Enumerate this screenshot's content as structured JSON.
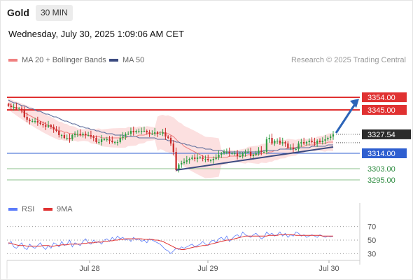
{
  "header": {
    "title": "Gold",
    "timeframe": "30 MIN"
  },
  "datetime": "Wednesday, July 30, 2025 1:09:06 AM CET",
  "legend": {
    "ma20_label": "MA 20 + Bollinger Bands",
    "ma50_label": "MA 50",
    "credit": "Research © 2025 Trading Central",
    "rsi_label": "RSI",
    "ma9_label": "9MA"
  },
  "colors": {
    "up": "#2f9e44",
    "down": "#c92a2a",
    "resistance": "#e03131",
    "support_major": "#2f5fd0",
    "support_minor": "#8bc28b",
    "bollinger": "#fbd5d5",
    "ma20": "#f08080",
    "ma50": "#5a6a9a",
    "rsi": "#5c7cfa",
    "rsi_ma": "#e03131",
    "arrow": "#2c64b8",
    "trendline": "#3b4a80"
  },
  "chart_data": [
    {
      "type": "candlestick",
      "title": "Gold",
      "x_labels": [
        "Jul 28",
        "Jul 29",
        "Jul 30"
      ],
      "ylim": [
        3290,
        3360
      ],
      "current_price": 3327.54,
      "price_tag": "3327.54",
      "levels": [
        {
          "value": 3354.0,
          "label": "3354.00",
          "kind": "resistance"
        },
        {
          "value": 3345.0,
          "label": "3345.00",
          "kind": "resistance"
        },
        {
          "value": 3314.0,
          "label": "3314.00",
          "kind": "support_major"
        },
        {
          "value": 3303.0,
          "label": "3303.00",
          "kind": "support_minor"
        },
        {
          "value": 3295.0,
          "label": "3295.00",
          "kind": "support_minor"
        }
      ],
      "close": [
        3348,
        3347,
        3347,
        3346,
        3346,
        3345,
        3340,
        3338,
        3337,
        3337,
        3337,
        3336,
        3335,
        3334,
        3333,
        3334,
        3333,
        3331,
        3330,
        3327,
        3327,
        3325,
        3325,
        3324,
        3327,
        3328,
        3328,
        3327,
        3328,
        3327,
        3327,
        3326,
        3325,
        3322,
        3322,
        3324,
        3324,
        3324,
        3323,
        3322,
        3322,
        3322,
        3325,
        3326,
        3328,
        3328,
        3330,
        3329,
        3330,
        3330,
        3330,
        3330,
        3329,
        3328,
        3328,
        3329,
        3328,
        3328,
        3329,
        3326,
        3325,
        3321,
        3315,
        3302,
        3306,
        3307,
        3308,
        3309,
        3310,
        3311,
        3310,
        3311,
        3311,
        3310,
        3310,
        3309,
        3309,
        3310,
        3311,
        3313,
        3314,
        3315,
        3315,
        3314,
        3314,
        3314,
        3312,
        3312,
        3314,
        3315,
        3315,
        3312,
        3313,
        3314,
        3316,
        3315,
        3315,
        3324,
        3325,
        3321,
        3323,
        3323,
        3321,
        3322,
        3321,
        3318,
        3318,
        3317,
        3317,
        3321,
        3322,
        3321,
        3322,
        3323,
        3322,
        3321,
        3323,
        3322,
        3323,
        3324,
        3325,
        3326,
        3327.54
      ],
      "ma20": [
        3350,
        3348,
        3347,
        3346,
        3345,
        3344,
        3343,
        3342,
        3341,
        3340,
        3339,
        3338,
        3337,
        3336,
        3335,
        3334,
        3333,
        3332,
        3331,
        3330,
        3330,
        3329,
        3329,
        3328,
        3328,
        3328,
        3327,
        3327,
        3327,
        3327,
        3327,
        3326,
        3326,
        3326,
        3326,
        3325,
        3325,
        3325,
        3325,
        3325,
        3325,
        3325,
        3325,
        3325,
        3325,
        3326,
        3326,
        3326,
        3326,
        3327,
        3327,
        3327,
        3328,
        3328,
        3328,
        3328,
        3328,
        3329,
        3329,
        3328,
        3328,
        3327,
        3326,
        3324,
        3322,
        3321,
        3319,
        3318,
        3317,
        3316,
        3315,
        3314,
        3313,
        3312,
        3311,
        3311,
        3311,
        3311,
        3311,
        3311,
        3311,
        3311,
        3311,
        3312,
        3312,
        3312,
        3312,
        3312,
        3312,
        3312,
        3313,
        3313,
        3313,
        3313,
        3313,
        3314,
        3314,
        3314,
        3315,
        3315,
        3316,
        3316,
        3317,
        3317,
        3317,
        3318,
        3318,
        3318,
        3318,
        3319,
        3319,
        3319,
        3320,
        3320,
        3320,
        3320,
        3321,
        3321,
        3321,
        3321,
        3322,
        3322,
        3322
      ],
      "ma50": [
        3352,
        3351,
        3350,
        3350,
        3349,
        3348,
        3348,
        3347,
        3346,
        3346,
        3345,
        3344,
        3344,
        3343,
        3342,
        3342,
        3341,
        3340,
        3340,
        3339,
        3338,
        3337,
        3337,
        3336,
        3335,
        3335,
        3334,
        3333,
        3333,
        3332,
        3332,
        3331,
        3331,
        3330,
        3330,
        3329,
        3329,
        3328,
        3328,
        3328,
        3327,
        3327,
        3327,
        3327,
        3326,
        3326,
        3326,
        3326,
        3326,
        3325,
        3325,
        3325,
        3325,
        3325,
        3325,
        3325,
        3324,
        3324,
        3324,
        3324,
        3323,
        3323,
        3323,
        3322,
        3322,
        3321,
        3321,
        3320,
        3320,
        3319,
        3319,
        3318,
        3318,
        3318,
        3317,
        3317,
        3317,
        3316,
        3316,
        3316,
        3316,
        3315,
        3315,
        3315,
        3315,
        3315,
        3315,
        3315,
        3315,
        3315,
        3315,
        3315,
        3315,
        3315,
        3315,
        3315,
        3316,
        3316,
        3316,
        3316,
        3316,
        3316,
        3317,
        3317,
        3317,
        3317,
        3317,
        3317,
        3318,
        3318,
        3318,
        3318,
        3318,
        3318,
        3319,
        3319,
        3319,
        3319,
        3319,
        3319,
        3320,
        3320,
        3320
      ]
    },
    {
      "type": "line",
      "title": "RSI",
      "ylim": [
        20,
        80
      ],
      "ticks": [
        70,
        50,
        30
      ],
      "dotted_levels": [
        70,
        50,
        30
      ],
      "series": [
        {
          "name": "RSI",
          "values": [
            44,
            48,
            40,
            38,
            42,
            46,
            38,
            36,
            44,
            40,
            38,
            42,
            46,
            40,
            36,
            42,
            38,
            46,
            44,
            40,
            48,
            42,
            44,
            50,
            40,
            46,
            44,
            42,
            48,
            52,
            46,
            44,
            50,
            46,
            48,
            44,
            50,
            52,
            48,
            54,
            50,
            56,
            52,
            54,
            50,
            52,
            48,
            54,
            50,
            52,
            48,
            50,
            46,
            52,
            50,
            48,
            46,
            44,
            40,
            36,
            34,
            30,
            34,
            38,
            36,
            40,
            38,
            40,
            42,
            44,
            40,
            42,
            44,
            48,
            44,
            42,
            48,
            50,
            46,
            52,
            54,
            50,
            56,
            48,
            52,
            56,
            58,
            54,
            62,
            58,
            56,
            54,
            58,
            60,
            56,
            52,
            54,
            62,
            58,
            60,
            56,
            58,
            62,
            56,
            60,
            54,
            58,
            56,
            62,
            60,
            56,
            58,
            54,
            56,
            58,
            56,
            54,
            58,
            56,
            54,
            56,
            55,
            56
          ]
        },
        {
          "name": "9MA",
          "values": [
            46,
            45,
            44,
            43,
            42,
            42,
            42,
            41,
            41,
            41,
            41,
            41,
            41,
            42,
            42,
            42,
            41,
            41,
            42,
            42,
            43,
            43,
            43,
            44,
            44,
            44,
            44,
            44,
            45,
            45,
            46,
            46,
            46,
            47,
            47,
            47,
            48,
            48,
            49,
            49,
            50,
            50,
            51,
            51,
            52,
            52,
            52,
            52,
            52,
            52,
            52,
            51,
            51,
            51,
            51,
            50,
            50,
            49,
            48,
            46,
            44,
            42,
            40,
            38,
            37,
            36,
            36,
            37,
            38,
            39,
            40,
            40,
            41,
            42,
            42,
            43,
            44,
            45,
            46,
            47,
            48,
            49,
            50,
            50,
            51,
            52,
            53,
            54,
            55,
            56,
            56,
            56,
            56,
            56,
            56,
            56,
            56,
            56,
            57,
            57,
            57,
            57,
            58,
            58,
            58,
            58,
            58,
            58,
            57,
            57,
            57,
            57,
            57,
            57,
            57,
            57,
            57,
            57,
            56,
            56,
            56,
            56,
            56
          ]
        }
      ]
    }
  ]
}
